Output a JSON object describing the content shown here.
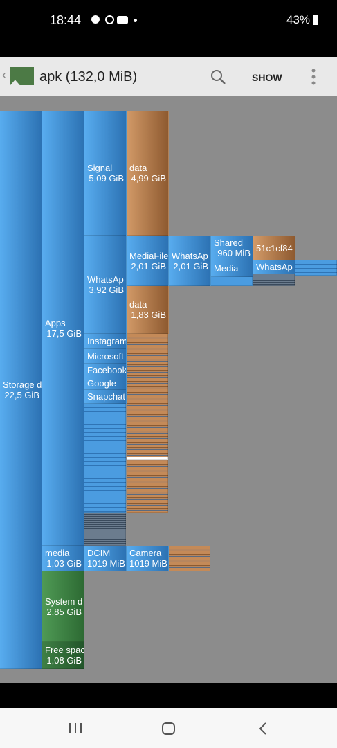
{
  "status_bar": {
    "time": "18:44",
    "battery": "43%"
  },
  "app_bar": {
    "title": "apk (132,0 MiB)",
    "action": "SHOW"
  },
  "blocks": [
    {
      "name": "Storage d",
      "size": "22,5 GiB"
    },
    {
      "name": "Apps",
      "size": "17,5 GiB"
    },
    {
      "name": "media",
      "size": "1,03 GiB"
    },
    {
      "name": "System d",
      "size": "2,85 GiB"
    },
    {
      "name": "Free spac",
      "size": "1,08 GiB"
    },
    {
      "name": "Signal",
      "size": "5,09 GiB"
    },
    {
      "name": "WhatsAp",
      "size": "3,92 GiB"
    },
    {
      "name": "Instagram"
    },
    {
      "name": "Microsoft"
    },
    {
      "name": "Facebook"
    },
    {
      "name": "Google"
    },
    {
      "name": "Snapchat"
    },
    {
      "name": "DCIM",
      "size": "1019 MiB"
    },
    {
      "name": "data",
      "size": "4,99 GiB"
    },
    {
      "name": "MediaFile",
      "size": "2,01 GiB"
    },
    {
      "name": "data",
      "size": "1,83 GiB"
    },
    {
      "name": "Camera",
      "size": "1019 MiB"
    },
    {
      "name": "WhatsAp",
      "size": "2,01 GiB"
    },
    {
      "name": "Shared",
      "size": "960 MiB"
    },
    {
      "name": "Media"
    },
    {
      "name": "51c1cf84"
    },
    {
      "name": "WhatsAp"
    }
  ]
}
